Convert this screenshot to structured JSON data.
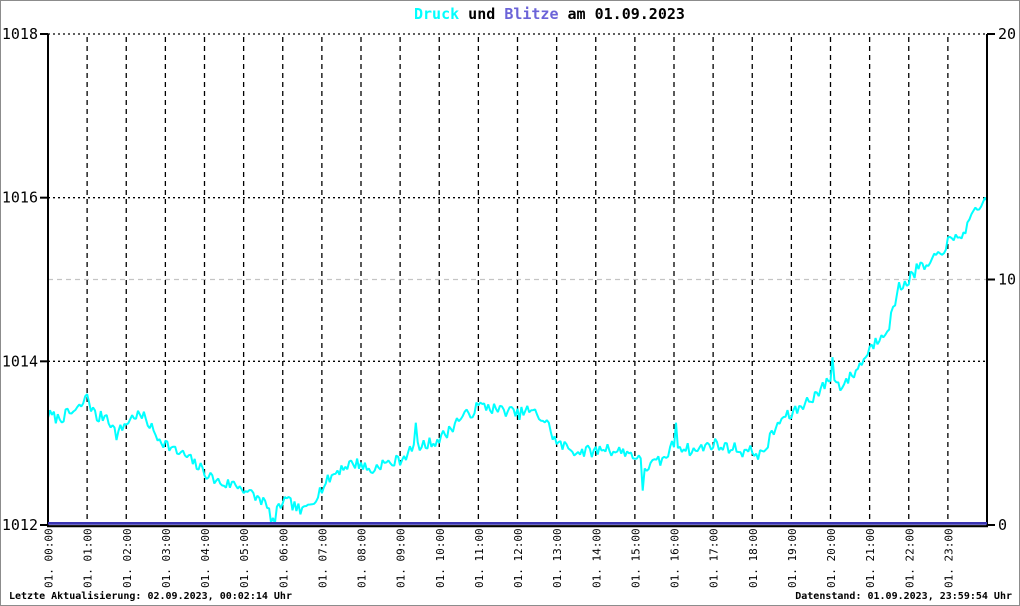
{
  "window": {
    "background": "#ffffff",
    "border_color": "#8c8c8c"
  },
  "title": {
    "parts": [
      {
        "text": "Druck",
        "color": "#00ffff"
      },
      {
        "text": " und ",
        "color": "#000000"
      },
      {
        "text": "Blitze",
        "color": "#6b63d8"
      },
      {
        "text": " am 01.09.2023",
        "color": "#000000"
      }
    ]
  },
  "footer": {
    "last_update": "Letzte Aktualisierung: 02.09.2023, 00:02:14 Uhr",
    "data_state": "Datenstand: 01.09.2023, 23:59:54 Uhr"
  },
  "chart_data": {
    "type": "line",
    "title": "Druck und Blitze am 01.09.2023",
    "grid": {
      "vertical_hour_lines": "dashed-black",
      "h_dotted_black": [
        1014,
        1016,
        1018
      ],
      "h_dashed_gray": [
        1015
      ],
      "gray_color": "#c4c4c4"
    },
    "left_axis": {
      "range": [
        1012,
        1018
      ],
      "ticks": [
        1012,
        1014,
        1016,
        1018
      ],
      "series": "Druck"
    },
    "right_axis": {
      "range": [
        0,
        20
      ],
      "ticks": [
        0,
        10,
        20
      ],
      "series": "Blitze"
    },
    "x_axis": {
      "hours": 24,
      "tick_labels": [
        "01. 00:00",
        "01. 01:00",
        "01. 02:00",
        "01. 03:00",
        "01. 04:00",
        "01. 05:00",
        "01. 06:00",
        "01. 07:00",
        "01. 08:00",
        "01. 09:00",
        "01. 10:00",
        "01. 11:00",
        "01. 12:00",
        "01. 13:00",
        "01. 14:00",
        "01. 15:00",
        "01. 16:00",
        "01. 17:00",
        "01. 18:00",
        "01. 19:00",
        "01. 20:00",
        "01. 21:00",
        "01. 22:00",
        "01. 23:00"
      ]
    },
    "series": [
      {
        "name": "Druck",
        "color": "#00ffff",
        "axis": "left",
        "x_start_hour": 0,
        "x_step_hour": 0.25,
        "noise_hpa": 0.075,
        "values": [
          1013.35,
          1013.3,
          1013.35,
          1013.4,
          1013.55,
          1013.3,
          1013.35,
          1013.1,
          1013.25,
          1013.35,
          1013.3,
          1013.1,
          1013.0,
          1012.9,
          1012.85,
          1012.75,
          1012.65,
          1012.55,
          1012.5,
          1012.5,
          1012.45,
          1012.35,
          1012.3,
          1012.05,
          1012.3,
          1012.25,
          1012.15,
          1012.3,
          1012.45,
          1012.6,
          1012.7,
          1012.75,
          1012.75,
          1012.65,
          1012.75,
          1012.75,
          1012.8,
          1012.9,
          1012.95,
          1013.0,
          1013.05,
          1013.15,
          1013.3,
          1013.35,
          1013.45,
          1013.45,
          1013.4,
          1013.4,
          1013.35,
          1013.4,
          1013.35,
          1013.25,
          1013.0,
          1012.95,
          1012.9,
          1012.9,
          1012.9,
          1012.95,
          1012.9,
          1012.9,
          1012.85,
          1012.7,
          1012.75,
          1012.8,
          1013.0,
          1012.95,
          1012.9,
          1012.95,
          1013.0,
          1012.95,
          1012.95,
          1012.9,
          1012.9,
          1012.85,
          1013.1,
          1013.3,
          1013.35,
          1013.45,
          1013.55,
          1013.65,
          1013.8,
          1013.7,
          1013.8,
          1013.95,
          1014.15,
          1014.3,
          1014.45,
          1014.9,
          1015.0,
          1015.15,
          1015.15,
          1015.3,
          1015.45,
          1015.5,
          1015.65,
          1015.85,
          1015.95
        ],
        "spikes": [
          {
            "hour": 1.0,
            "value": 1013.6
          },
          {
            "hour": 5.8,
            "value": 1012.02
          },
          {
            "hour": 9.4,
            "value": 1013.25
          },
          {
            "hour": 15.2,
            "value": 1012.42
          },
          {
            "hour": 16.05,
            "value": 1013.25
          },
          {
            "hour": 20.07,
            "value": 1014.05
          },
          {
            "hour": 23.95,
            "value": 1016.0
          }
        ]
      },
      {
        "name": "Blitze",
        "color": "#3a34b2",
        "axis": "right",
        "constant_value": 0
      }
    ]
  }
}
